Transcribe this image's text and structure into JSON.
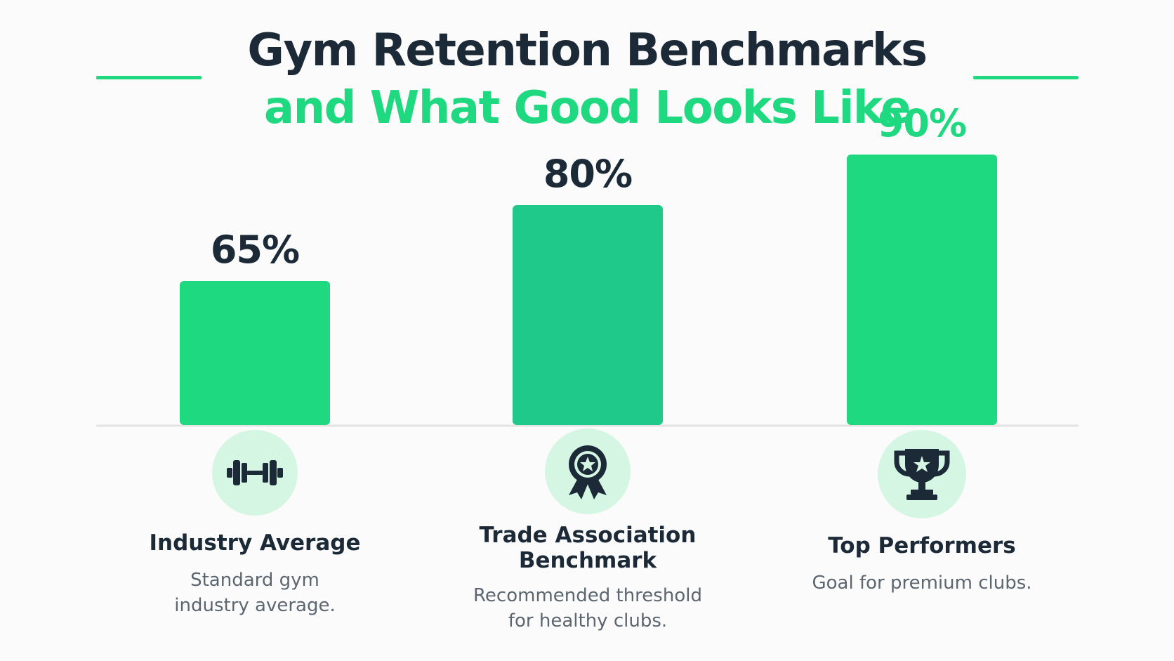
{
  "title": {
    "line1": "Gym Retention Benchmarks",
    "line2": "and What Good Looks Like"
  },
  "colors": {
    "accent": "#1ed97f",
    "bar_mid": "#1fc98a",
    "text_dark": "#1c2a38",
    "text_muted": "#5c6670",
    "icon_bg": "#d6f6e4",
    "icon_fg": "#1c2a38"
  },
  "chart_data": {
    "type": "bar",
    "categories": [
      "Industry Average",
      "Trade Association Benchmark",
      "Top Performers"
    ],
    "values": [
      65,
      80,
      90
    ],
    "value_labels": [
      "65%",
      "80%",
      "90%"
    ],
    "unit": "%",
    "title": "Gym Retention Benchmarks and What Good Looks Like",
    "ylim": [
      0,
      100
    ],
    "grid": false,
    "legend": "none",
    "bar_colors": [
      "#1ed97f",
      "#1fc98a",
      "#1ed97f"
    ],
    "value_label_colors": [
      "#1c2a38",
      "#1c2a38",
      "#1ed97f"
    ]
  },
  "categories": [
    {
      "title_lines": [
        "Industry Average"
      ],
      "desc_lines": [
        "Standard gym",
        "industry average."
      ],
      "icon": "dumbbell-icon"
    },
    {
      "title_lines": [
        "Trade Association",
        "Benchmark"
      ],
      "desc_lines": [
        "Recommended threshold",
        "for healthy clubs."
      ],
      "icon": "award-ribbon-icon"
    },
    {
      "title_lines": [
        "Top Performers"
      ],
      "desc_lines": [
        "Goal for premium clubs."
      ],
      "icon": "trophy-icon"
    }
  ]
}
